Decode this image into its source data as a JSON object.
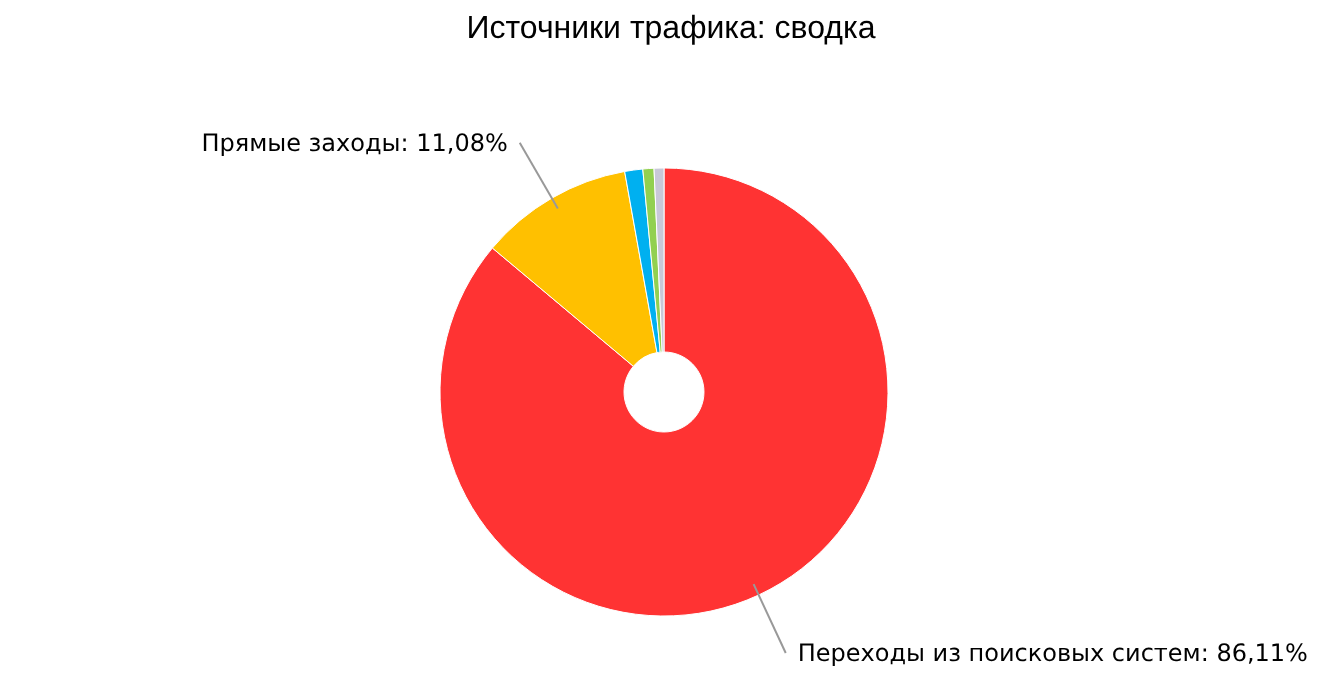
{
  "chart_data": {
    "type": "donut",
    "title": "Источники трафика: сводка",
    "categories": [
      "Переходы из поисковых систем",
      "Прямые заходы",
      null,
      null,
      null
    ],
    "values": [
      86.11,
      11.08,
      1.3,
      0.8,
      0.71
    ],
    "value_labels": [
      "86,11%",
      "11,08%",
      null,
      null,
      null
    ],
    "colors": [
      "#ff3333",
      "#ffc000",
      "#00b0f0",
      "#92d050",
      "#c8c8d8"
    ],
    "legend": false
  }
}
